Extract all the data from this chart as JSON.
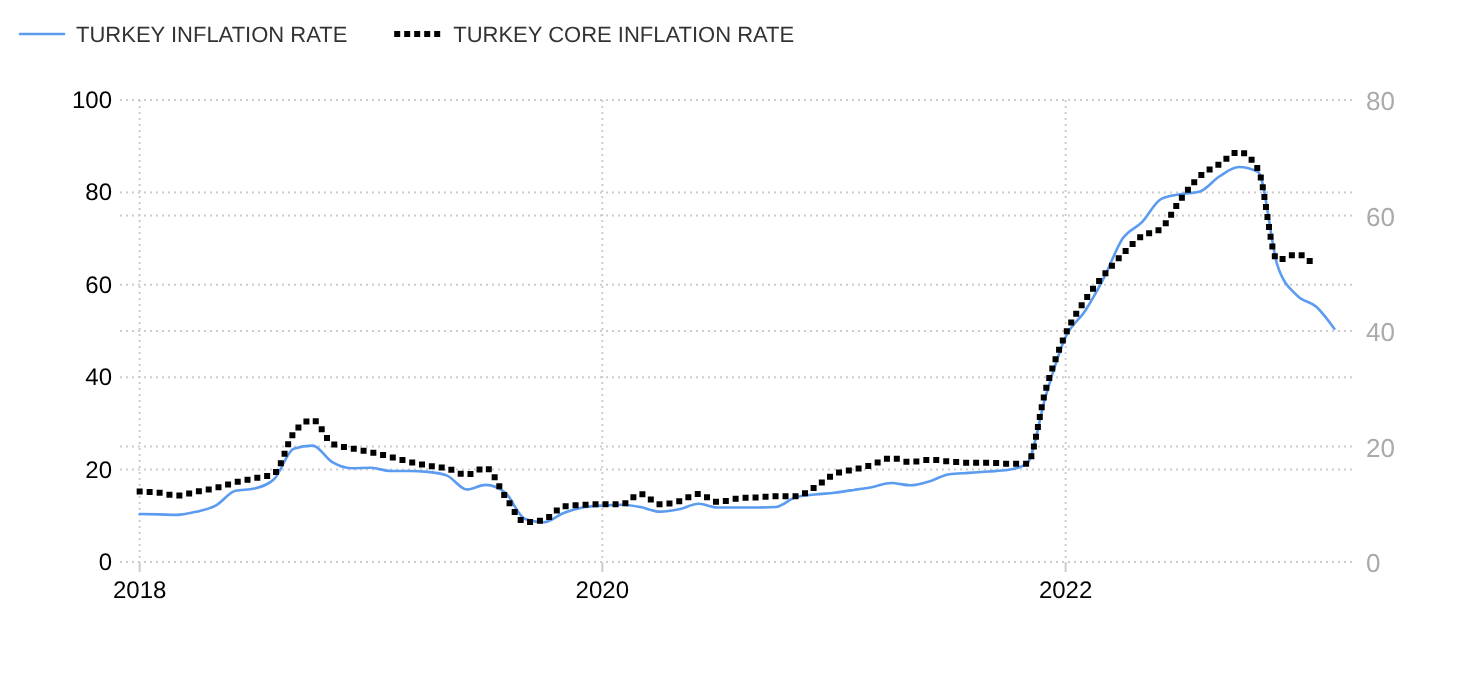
{
  "chart_data": {
    "type": "line",
    "x": [
      "2018-01",
      "2018-02",
      "2018-03",
      "2018-04",
      "2018-05",
      "2018-06",
      "2018-07",
      "2018-08",
      "2018-09",
      "2018-10",
      "2018-11",
      "2018-12",
      "2019-01",
      "2019-02",
      "2019-03",
      "2019-04",
      "2019-05",
      "2019-06",
      "2019-07",
      "2019-08",
      "2019-09",
      "2019-10",
      "2019-11",
      "2019-12",
      "2020-01",
      "2020-02",
      "2020-03",
      "2020-04",
      "2020-05",
      "2020-06",
      "2020-07",
      "2020-08",
      "2020-09",
      "2020-10",
      "2020-11",
      "2020-12",
      "2021-01",
      "2021-02",
      "2021-03",
      "2021-04",
      "2021-05",
      "2021-06",
      "2021-07",
      "2021-08",
      "2021-09",
      "2021-10",
      "2021-11",
      "2021-12",
      "2022-01",
      "2022-02",
      "2022-03",
      "2022-04",
      "2022-05",
      "2022-06",
      "2022-07",
      "2022-08",
      "2022-09",
      "2022-10",
      "2022-11",
      "2022-12",
      "2023-01",
      "2023-02",
      "2023-03"
    ],
    "series": [
      {
        "name": "TURKEY INFLATION RATE",
        "color": "#5b9bf0",
        "line_style": "solid",
        "values": [
          10.4,
          10.3,
          10.2,
          10.9,
          12.2,
          15.4,
          15.9,
          17.9,
          24.5,
          25.2,
          21.6,
          20.3,
          20.4,
          19.7,
          19.7,
          19.5,
          18.7,
          15.7,
          16.7,
          15.0,
          9.3,
          8.6,
          10.6,
          11.8,
          12.2,
          12.4,
          11.9,
          10.9,
          11.4,
          12.6,
          11.8,
          11.8,
          11.8,
          11.9,
          14.0,
          14.6,
          15.0,
          15.6,
          16.2,
          17.1,
          16.6,
          17.5,
          19.0,
          19.3,
          19.6,
          19.9,
          21.3,
          36.1,
          48.7,
          54.4,
          61.1,
          70.0,
          73.5,
          78.6,
          79.6,
          80.2,
          83.5,
          85.5,
          84.4,
          64.3,
          57.7,
          55.2,
          50.5
        ]
      },
      {
        "name": "TURKEY CORE INFLATION RATE",
        "color": "#000000",
        "line_style": "dotted",
        "axis": "y2",
        "values": [
          12.2,
          12.0,
          11.5,
          12.2,
          12.8,
          13.8,
          14.5,
          15.3,
          22.3,
          24.6,
          20.5,
          19.7,
          19.0,
          18.2,
          17.4,
          16.7,
          16.2,
          15.1,
          16.3,
          11.3,
          6.9,
          7.3,
          9.6,
          9.9,
          10.0,
          10.0,
          11.8,
          10.0,
          10.5,
          11.8,
          10.4,
          11.0,
          11.2,
          11.4,
          11.4,
          12.9,
          15.2,
          16.0,
          16.8,
          18.0,
          17.3,
          17.7,
          17.4,
          17.2,
          17.2,
          17.0,
          17.0,
          30.0,
          39.5,
          45.4,
          49.5,
          53.3,
          56.4,
          57.8,
          62.7,
          66.8,
          68.9,
          71.0,
          67.9,
          52.3,
          53.3,
          50.9,
          null
        ]
      }
    ],
    "xlim": [
      "2017-12",
      "2023-04"
    ],
    "xticks": [
      {
        "value": "2018-01",
        "label": "2018"
      },
      {
        "value": "2020-01",
        "label": "2020"
      },
      {
        "value": "2022-01",
        "label": "2022"
      }
    ],
    "ylim": [
      0,
      100
    ],
    "yticks": [
      0,
      20,
      40,
      60,
      80,
      100
    ],
    "y2lim": [
      0,
      80
    ],
    "y2ticks": [
      0,
      20,
      40,
      60,
      80
    ],
    "grid": true,
    "legend": "top left"
  }
}
